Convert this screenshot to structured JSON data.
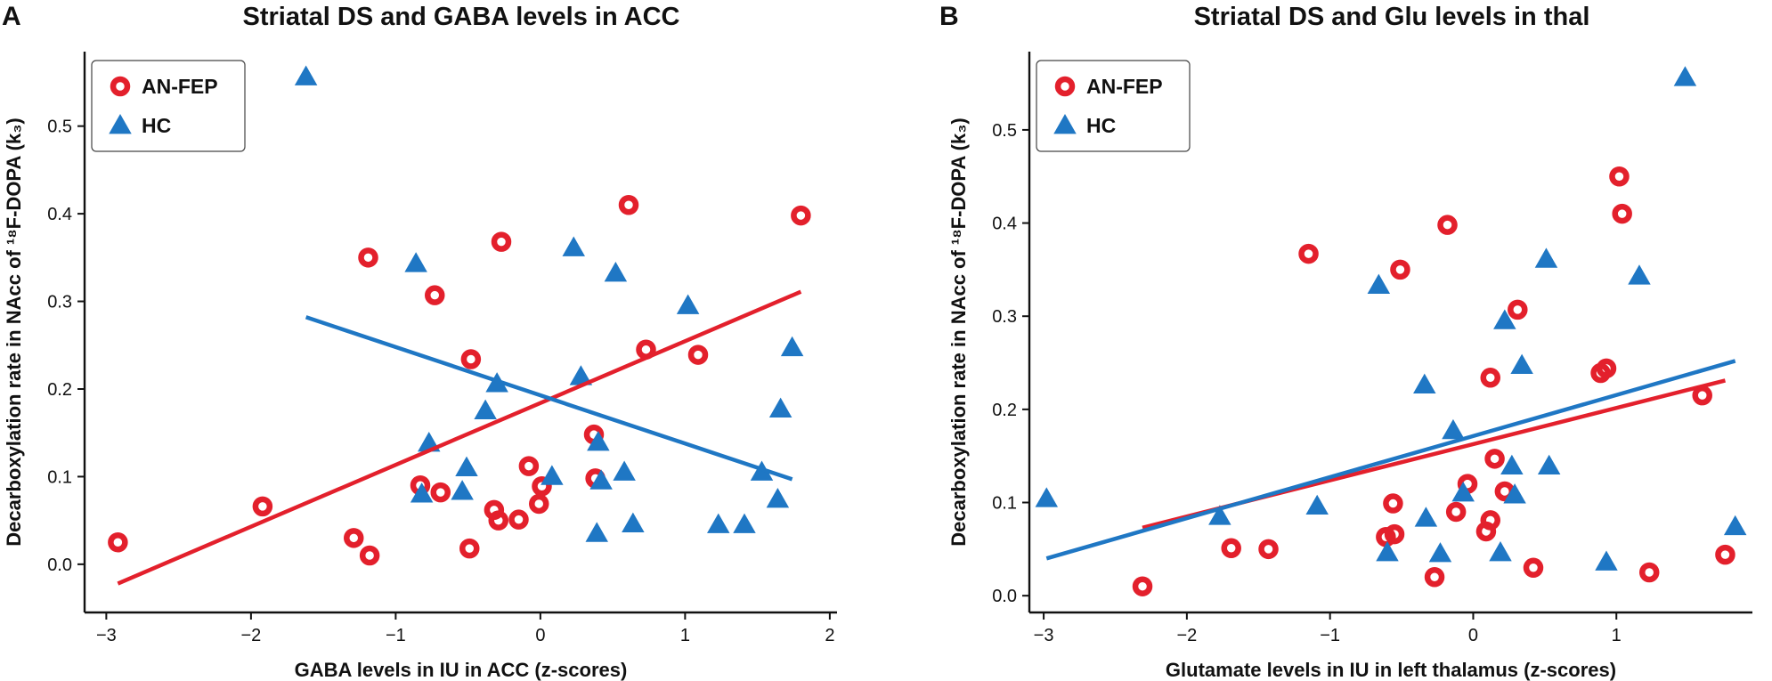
{
  "chart_data": [
    {
      "type": "scatter",
      "panel": "A",
      "title": "Striatal DS and GABA levels in ACC",
      "xlabel": "GABA levels in IU in ACC (z-scores)",
      "ylabel": "Decarboxylation rate in NAcc of ¹⁸F-DOPA (k₃)",
      "xlim": [
        -3.15,
        2.05
      ],
      "ylim": [
        -0.055,
        0.585
      ],
      "xticks": [
        -3,
        -2,
        -1,
        0,
        1,
        2
      ],
      "xtick_labels": [
        "−3",
        "−2",
        "−1",
        "0",
        "1",
        "2"
      ],
      "yticks": [
        0.0,
        0.1,
        0.2,
        0.3,
        0.4,
        0.5
      ],
      "ytick_labels": [
        "0.0",
        "0.1",
        "0.2",
        "0.3",
        "0.4",
        "0.5"
      ],
      "legend_position": "top-left",
      "series": [
        {
          "name": "AN-FEP",
          "color": "#e3202c",
          "marker": "circle",
          "points": [
            [
              -2.92,
              0.025
            ],
            [
              -1.92,
              0.066
            ],
            [
              -1.29,
              0.03
            ],
            [
              -1.19,
              0.35
            ],
            [
              -1.18,
              0.01
            ],
            [
              -0.83,
              0.09
            ],
            [
              -0.73,
              0.307
            ],
            [
              -0.69,
              0.082
            ],
            [
              -0.49,
              0.018
            ],
            [
              -0.48,
              0.234
            ],
            [
              -0.32,
              0.062
            ],
            [
              -0.29,
              0.05
            ],
            [
              -0.27,
              0.368
            ],
            [
              -0.15,
              0.051
            ],
            [
              -0.08,
              0.112
            ],
            [
              -0.01,
              0.069
            ],
            [
              0.01,
              0.089
            ],
            [
              0.37,
              0.148
            ],
            [
              0.38,
              0.098
            ],
            [
              0.61,
              0.41
            ],
            [
              0.73,
              0.245
            ],
            [
              1.09,
              0.239
            ],
            [
              1.8,
              0.398
            ]
          ],
          "fit": [
            [
              -2.92,
              -0.022
            ],
            [
              1.8,
              0.311
            ]
          ]
        },
        {
          "name": "HC",
          "color": "#1f77c4",
          "marker": "triangle",
          "points": [
            [
              -1.62,
              0.556
            ],
            [
              -0.86,
              0.343
            ],
            [
              -0.82,
              0.08
            ],
            [
              -0.77,
              0.138
            ],
            [
              -0.54,
              0.083
            ],
            [
              -0.51,
              0.11
            ],
            [
              -0.38,
              0.175
            ],
            [
              -0.3,
              0.206
            ],
            [
              0.08,
              0.1
            ],
            [
              0.23,
              0.361
            ],
            [
              0.28,
              0.214
            ],
            [
              0.39,
              0.035
            ],
            [
              0.4,
              0.139
            ],
            [
              0.42,
              0.095
            ],
            [
              0.52,
              0.332
            ],
            [
              0.58,
              0.105
            ],
            [
              0.64,
              0.046
            ],
            [
              1.02,
              0.295
            ],
            [
              1.23,
              0.045
            ],
            [
              1.41,
              0.045
            ],
            [
              1.53,
              0.105
            ],
            [
              1.64,
              0.074
            ],
            [
              1.66,
              0.177
            ],
            [
              1.74,
              0.247
            ]
          ],
          "fit": [
            [
              -1.62,
              0.282
            ],
            [
              1.74,
              0.097
            ]
          ]
        }
      ]
    },
    {
      "type": "scatter",
      "panel": "B",
      "title": "Striatal DS and Glu levels in thal",
      "xlabel": "Glutamate levels in IU in left thalamus (z-scores)",
      "ylabel": "Decarboxylation rate in NAcc of ¹⁸F-DOPA (k₃)",
      "xlim": [
        -3.1,
        1.95
      ],
      "ylim": [
        -0.018,
        0.584
      ],
      "xticks": [
        -3,
        -2,
        -1,
        0,
        1
      ],
      "xtick_labels": [
        "−3",
        "−2",
        "−1",
        "0",
        "1"
      ],
      "yticks": [
        0.0,
        0.1,
        0.2,
        0.3,
        0.4,
        0.5
      ],
      "ytick_labels": [
        "0.0",
        "0.1",
        "0.2",
        "0.3",
        "0.4",
        "0.5"
      ],
      "legend_position": "top-left",
      "series": [
        {
          "name": "AN-FEP",
          "color": "#e3202c",
          "marker": "circle",
          "points": [
            [
              -2.31,
              0.01
            ],
            [
              -1.69,
              0.051
            ],
            [
              -1.43,
              0.05
            ],
            [
              -1.15,
              0.367
            ],
            [
              -0.61,
              0.063
            ],
            [
              -0.56,
              0.099
            ],
            [
              -0.55,
              0.066
            ],
            [
              -0.51,
              0.35
            ],
            [
              -0.27,
              0.02
            ],
            [
              -0.18,
              0.398
            ],
            [
              -0.12,
              0.09
            ],
            [
              -0.04,
              0.12
            ],
            [
              0.09,
              0.069
            ],
            [
              0.12,
              0.081
            ],
            [
              0.12,
              0.234
            ],
            [
              0.15,
              0.147
            ],
            [
              0.22,
              0.112
            ],
            [
              0.31,
              0.307
            ],
            [
              0.42,
              0.03
            ],
            [
              0.89,
              0.239
            ],
            [
              0.93,
              0.244
            ],
            [
              1.02,
              0.45
            ],
            [
              1.04,
              0.41
            ],
            [
              1.23,
              0.025
            ],
            [
              1.6,
              0.215
            ],
            [
              1.76,
              0.044
            ]
          ],
          "fit": [
            [
              -2.31,
              0.073
            ],
            [
              1.76,
              0.231
            ]
          ]
        },
        {
          "name": "HC",
          "color": "#1f77c4",
          "marker": "triangle",
          "points": [
            [
              -2.98,
              0.104
            ],
            [
              -1.77,
              0.085
            ],
            [
              -1.09,
              0.096
            ],
            [
              -0.6,
              0.046
            ],
            [
              -0.66,
              0.333
            ],
            [
              -0.34,
              0.226
            ],
            [
              -0.33,
              0.083
            ],
            [
              -0.23,
              0.045
            ],
            [
              -0.14,
              0.177
            ],
            [
              -0.07,
              0.11
            ],
            [
              0.19,
              0.046
            ],
            [
              0.22,
              0.295
            ],
            [
              0.27,
              0.139
            ],
            [
              0.29,
              0.108
            ],
            [
              0.34,
              0.247
            ],
            [
              0.51,
              0.361
            ],
            [
              0.53,
              0.139
            ],
            [
              0.93,
              0.036
            ],
            [
              1.16,
              0.343
            ],
            [
              1.48,
              0.556
            ],
            [
              1.83,
              0.074
            ]
          ],
          "fit": [
            [
              -2.98,
              0.04
            ],
            [
              1.83,
              0.252
            ]
          ]
        }
      ]
    }
  ]
}
